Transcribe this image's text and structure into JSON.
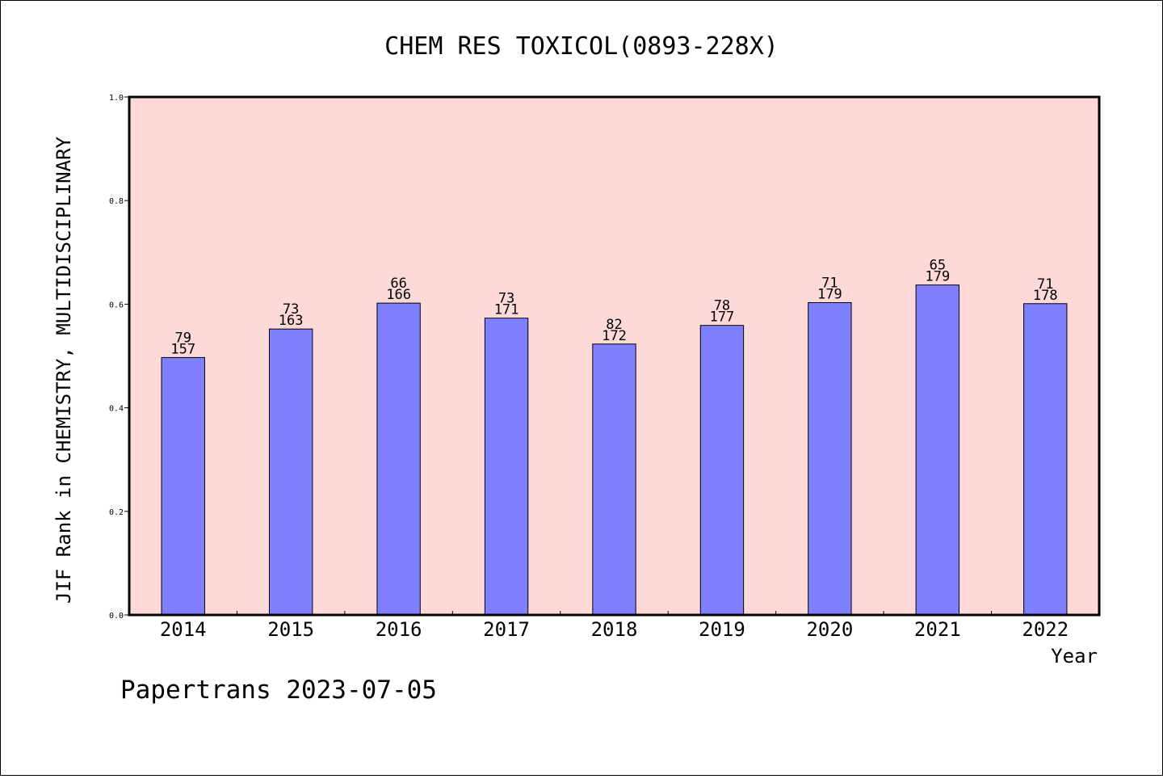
{
  "chart_data": {
    "type": "bar",
    "title": "CHEM RES TOXICOL(0893-228X)",
    "xlabel": "Year",
    "ylabel": "JIF Rank in CHEMISTRY, MULTIDISCIPLINARY",
    "ylim": [
      0,
      1.0
    ],
    "yticks": [
      "0.0",
      "0.2",
      "0.4",
      "0.6",
      "0.8",
      "1.0"
    ],
    "categories": [
      "2014",
      "2015",
      "2016",
      "2017",
      "2018",
      "2019",
      "2020",
      "2021",
      "2022"
    ],
    "values": [
      0.497,
      0.552,
      0.602,
      0.573,
      0.523,
      0.559,
      0.603,
      0.637,
      0.601
    ],
    "rank": [
      "79",
      "73",
      "66",
      "73",
      "82",
      "78",
      "71",
      "65",
      "71"
    ],
    "total": [
      "157",
      "163",
      "166",
      "171",
      "172",
      "177",
      "179",
      "179",
      "178"
    ],
    "colors": {
      "bar": "#8080ff",
      "plot_bg": "#fddad7",
      "border": "#000000"
    }
  },
  "footer": "Papertrans 2023-07-05"
}
